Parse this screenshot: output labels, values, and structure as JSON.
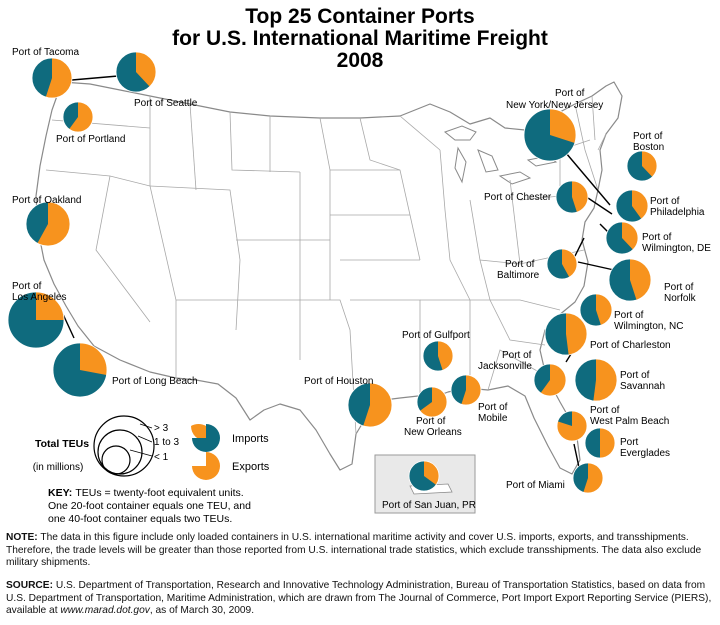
{
  "title": {
    "line1": "Top 25 Container Ports",
    "line2": "for U.S. International Maritime Freight",
    "line3": "2008"
  },
  "colors": {
    "imports": "#0f6b7e",
    "exports": "#f7931e",
    "land": "#ffffff",
    "border": "#9a9a9a",
    "pr_box": "#e9e9e9"
  },
  "legend": {
    "size_title": "Total TEUs",
    "size_unit": "(in millions)",
    "sizes": [
      "> 3",
      "1 to 3",
      "< 1"
    ],
    "imports_label": "Imports",
    "exports_label": "Exports",
    "key_line1": "KEY: TEUs = twenty-foot equivalent units.",
    "key_line2": "One 20-foot container equals one TEU, and",
    "key_line3": "one 40-foot container equals two TEUs."
  },
  "ports": [
    {
      "name": "Port of Tacoma",
      "import_share": 0.45,
      "size": "1 to 3"
    },
    {
      "name": "Port of Seattle",
      "import_share": 0.62,
      "size": "1 to 3"
    },
    {
      "name": "Port of Portland",
      "import_share": 0.4,
      "size": "< 1"
    },
    {
      "name": "Port of Oakland",
      "import_share": 0.42,
      "size": "1 to 3"
    },
    {
      "name": "Port of Los Angeles",
      "import_share": 0.75,
      "size": "> 3"
    },
    {
      "name": "Port of Long Beach",
      "import_share": 0.72,
      "size": "> 3"
    },
    {
      "name": "Port of Houston",
      "import_share": 0.45,
      "size": "1 to 3"
    },
    {
      "name": "Port of New York/New Jersey",
      "import_share": 0.7,
      "size": "> 3"
    },
    {
      "name": "Port of Boston",
      "import_share": 0.62,
      "size": "< 1"
    },
    {
      "name": "Port of Chester",
      "import_share": 0.55,
      "size": "< 1"
    },
    {
      "name": "Port of Philadelphia",
      "import_share": 0.6,
      "size": "< 1"
    },
    {
      "name": "Port of Wilmington, DE",
      "import_share": 0.62,
      "size": "< 1"
    },
    {
      "name": "Port of Baltimore",
      "import_share": 0.58,
      "size": "< 1"
    },
    {
      "name": "Port of Norfolk",
      "import_share": 0.55,
      "size": "1 to 3"
    },
    {
      "name": "Port of Wilmington, NC",
      "import_share": 0.55,
      "size": "< 1"
    },
    {
      "name": "Port of Charleston",
      "import_share": 0.52,
      "size": "1 to 3"
    },
    {
      "name": "Port of Savannah",
      "import_share": 0.48,
      "size": "1 to 3"
    },
    {
      "name": "Port of Jacksonville",
      "import_share": 0.4,
      "size": "< 1"
    },
    {
      "name": "Port of Gulfport",
      "import_share": 0.55,
      "size": "< 1"
    },
    {
      "name": "Port of New Orleans",
      "import_share": 0.35,
      "size": "< 1"
    },
    {
      "name": "Port of Mobile",
      "import_share": 0.45,
      "size": "< 1"
    },
    {
      "name": "Port of West Palm Beach",
      "import_share": 0.2,
      "size": "< 1"
    },
    {
      "name": "Port of Everglades",
      "import_share": 0.5,
      "size": "< 1"
    },
    {
      "name": "Port of Miami",
      "import_share": 0.45,
      "size": "< 1"
    },
    {
      "name": "Port of San Juan, PR",
      "import_share": 0.65,
      "size": "< 1"
    }
  ],
  "labels": {
    "tacoma": "Port of Tacoma",
    "seattle": "Port of Seattle",
    "portland": "Port of Portland",
    "oakland": "Port of Oakland",
    "la_1": "Port of",
    "la_2": "Los Angeles",
    "longbeach": "Port of Long Beach",
    "houston": "Port of Houston",
    "ny_1": "Port of",
    "ny_2": "New York/New Jersey",
    "boston_1": "Port of",
    "boston_2": "Boston",
    "chester": "Port of Chester",
    "philadelphia_1": "Port of",
    "philadelphia_2": "Philadelphia",
    "wilmde_1": "Port of",
    "wilmde_2": "Wilmington, DE",
    "baltimore_1": "Port of",
    "baltimore_2": "Baltimore",
    "norfolk_1": "Port of",
    "norfolk_2": "Norfolk",
    "wilmnc_1": "Port of",
    "wilmnc_2": "Wilmington, NC",
    "charleston": "Port of Charleston",
    "savannah_1": "Port of",
    "savannah_2": "Savannah",
    "jacksonville_1": "Port of",
    "jacksonville_2": "Jacksonville",
    "gulfport": "Port of Gulfport",
    "neworleans_1": "Port of",
    "neworleans_2": "New Orleans",
    "mobile_1": "Port of",
    "mobile_2": "Mobile",
    "wpb_1": "Port of",
    "wpb_2": "West Palm Beach",
    "everglades_1": "Port",
    "everglades_2": "Everglades",
    "miami": "Port of Miami",
    "sanjuan": "Port of San Juan, PR"
  },
  "note": {
    "label": "NOTE:",
    "text": "The data in this figure include only loaded containers in U.S. international maritime activity and cover U.S. imports, exports, and transshipments. Therefore, the trade levels will be greater than those reported from U.S. international trade statistics, which exclude transshipments. The data also exclude military shipments."
  },
  "source": {
    "label": "SOURCE:",
    "text": "U.S. Department of Transportation, Research and Innovative Technology Administration, Bureau of Transportation Statistics, based on data from U.S. Department of Transportation, Maritime Administration, which are drawn from The Journal of Commerce, Port Import Export Reporting Service (PIERS), available at",
    "url": "www.marad.dot.gov",
    "tail": ", as of March 30, 2009."
  }
}
